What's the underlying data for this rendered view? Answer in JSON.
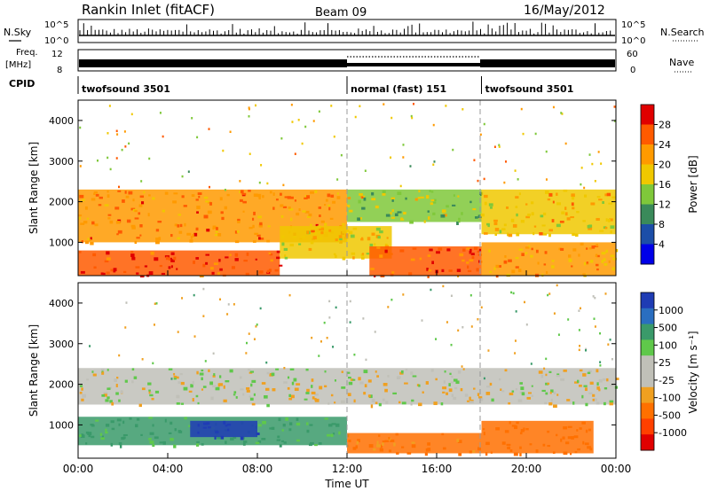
{
  "header": {
    "title": "Rankin Inlet (fitACF)",
    "beam": "Beam 09",
    "date": "16/May/2012"
  },
  "top_panels": {
    "nsky_label": "N.Sky",
    "nsky_ticks": [
      "10^5",
      "10^0"
    ],
    "nsearch_label": "N.Search",
    "nsearch_ticks": [
      "10^5",
      "10^0"
    ],
    "freq_label": "Freq.",
    "freq_unit": "[MHz]",
    "freq_ticks": [
      "12",
      "8"
    ],
    "nave_label": "Nave",
    "nave_ticks": [
      "60",
      "0"
    ],
    "cpid_label": "CPID",
    "cpid_segments": [
      {
        "label": "twofsound 3501",
        "start_h": 0,
        "end_h": 12
      },
      {
        "label": "normal (fast) 151",
        "start_h": 12,
        "end_h": 18
      },
      {
        "label": "twofsound 3501",
        "start_h": 18,
        "end_h": 24
      }
    ]
  },
  "colorbars": {
    "power": {
      "label": "Power [dB]",
      "ticks": [
        "28",
        "24",
        "20",
        "16",
        "12",
        "8",
        "4"
      ],
      "colors": [
        "#e00000",
        "#ff5a00",
        "#ff9a00",
        "#f0c800",
        "#7fc83a",
        "#3a8a5a",
        "#1c4ea8",
        "#0000e8"
      ]
    },
    "velocity": {
      "label": "Velocity [m s⁻¹]",
      "ticks": [
        "1000",
        "500",
        "100",
        "25",
        "-25",
        "-100",
        "-500",
        "-1000"
      ],
      "colors": [
        "#1f3cb4",
        "#2a6ec0",
        "#3a9a6a",
        "#5fc84a",
        "#c0c0b8",
        "#c0c0b8",
        "#f0a020",
        "#ff7000",
        "#ff4000",
        "#e00000"
      ]
    }
  },
  "x_axis": {
    "label": "Time UT",
    "ticks": [
      "00:00",
      "04:00",
      "08:00",
      "12:00",
      "16:00",
      "20:00",
      "00:00"
    ]
  },
  "chart_data": [
    {
      "type": "heatmap",
      "name": "power",
      "ylabel": "Slant Range [km]",
      "xlabel": "",
      "x_range_h": [
        0,
        24
      ],
      "ylim": [
        180,
        4500
      ],
      "yticks": [
        1000,
        2000,
        3000,
        4000
      ],
      "colorbar_label": "Power [dB]",
      "colorbar_range": [
        0,
        30
      ],
      "bands": [
        {
          "start_h": 0,
          "end_h": 12,
          "range_km": [
            1000,
            2300
          ],
          "value_db": 22
        },
        {
          "start_h": 0,
          "end_h": 9,
          "range_km": [
            180,
            800
          ],
          "value_db": 26
        },
        {
          "start_h": 9,
          "end_h": 14,
          "range_km": [
            600,
            1400
          ],
          "value_db": 18
        },
        {
          "start_h": 12,
          "end_h": 18,
          "range_km": [
            1500,
            2300
          ],
          "value_db": 14
        },
        {
          "start_h": 13,
          "end_h": 18,
          "range_km": [
            180,
            900
          ],
          "value_db": 24
        },
        {
          "start_h": 18,
          "end_h": 24,
          "range_km": [
            1200,
            2300
          ],
          "value_db": 18
        },
        {
          "start_h": 18,
          "end_h": 24,
          "range_km": [
            180,
            1000
          ],
          "value_db": 20
        }
      ]
    },
    {
      "type": "heatmap",
      "name": "velocity",
      "ylabel": "Slant Range [km]",
      "xlabel": "Time UT",
      "x_range_h": [
        0,
        24
      ],
      "ylim": [
        180,
        4500
      ],
      "yticks": [
        1000,
        2000,
        3000,
        4000
      ],
      "colorbar_label": "Velocity [m s⁻¹]",
      "bands": [
        {
          "start_h": 0,
          "end_h": 24,
          "range_km": [
            1500,
            2400
          ],
          "value_ms": 0
        },
        {
          "start_h": 0,
          "end_h": 12,
          "range_km": [
            500,
            1200
          ],
          "value_ms": 150
        },
        {
          "start_h": 5,
          "end_h": 8,
          "range_km": [
            700,
            1100
          ],
          "value_ms": 900
        },
        {
          "start_h": 12,
          "end_h": 18,
          "range_km": [
            300,
            800
          ],
          "value_ms": -200
        },
        {
          "start_h": 18,
          "end_h": 23,
          "range_km": [
            300,
            1100
          ],
          "value_ms": -300
        }
      ]
    }
  ]
}
